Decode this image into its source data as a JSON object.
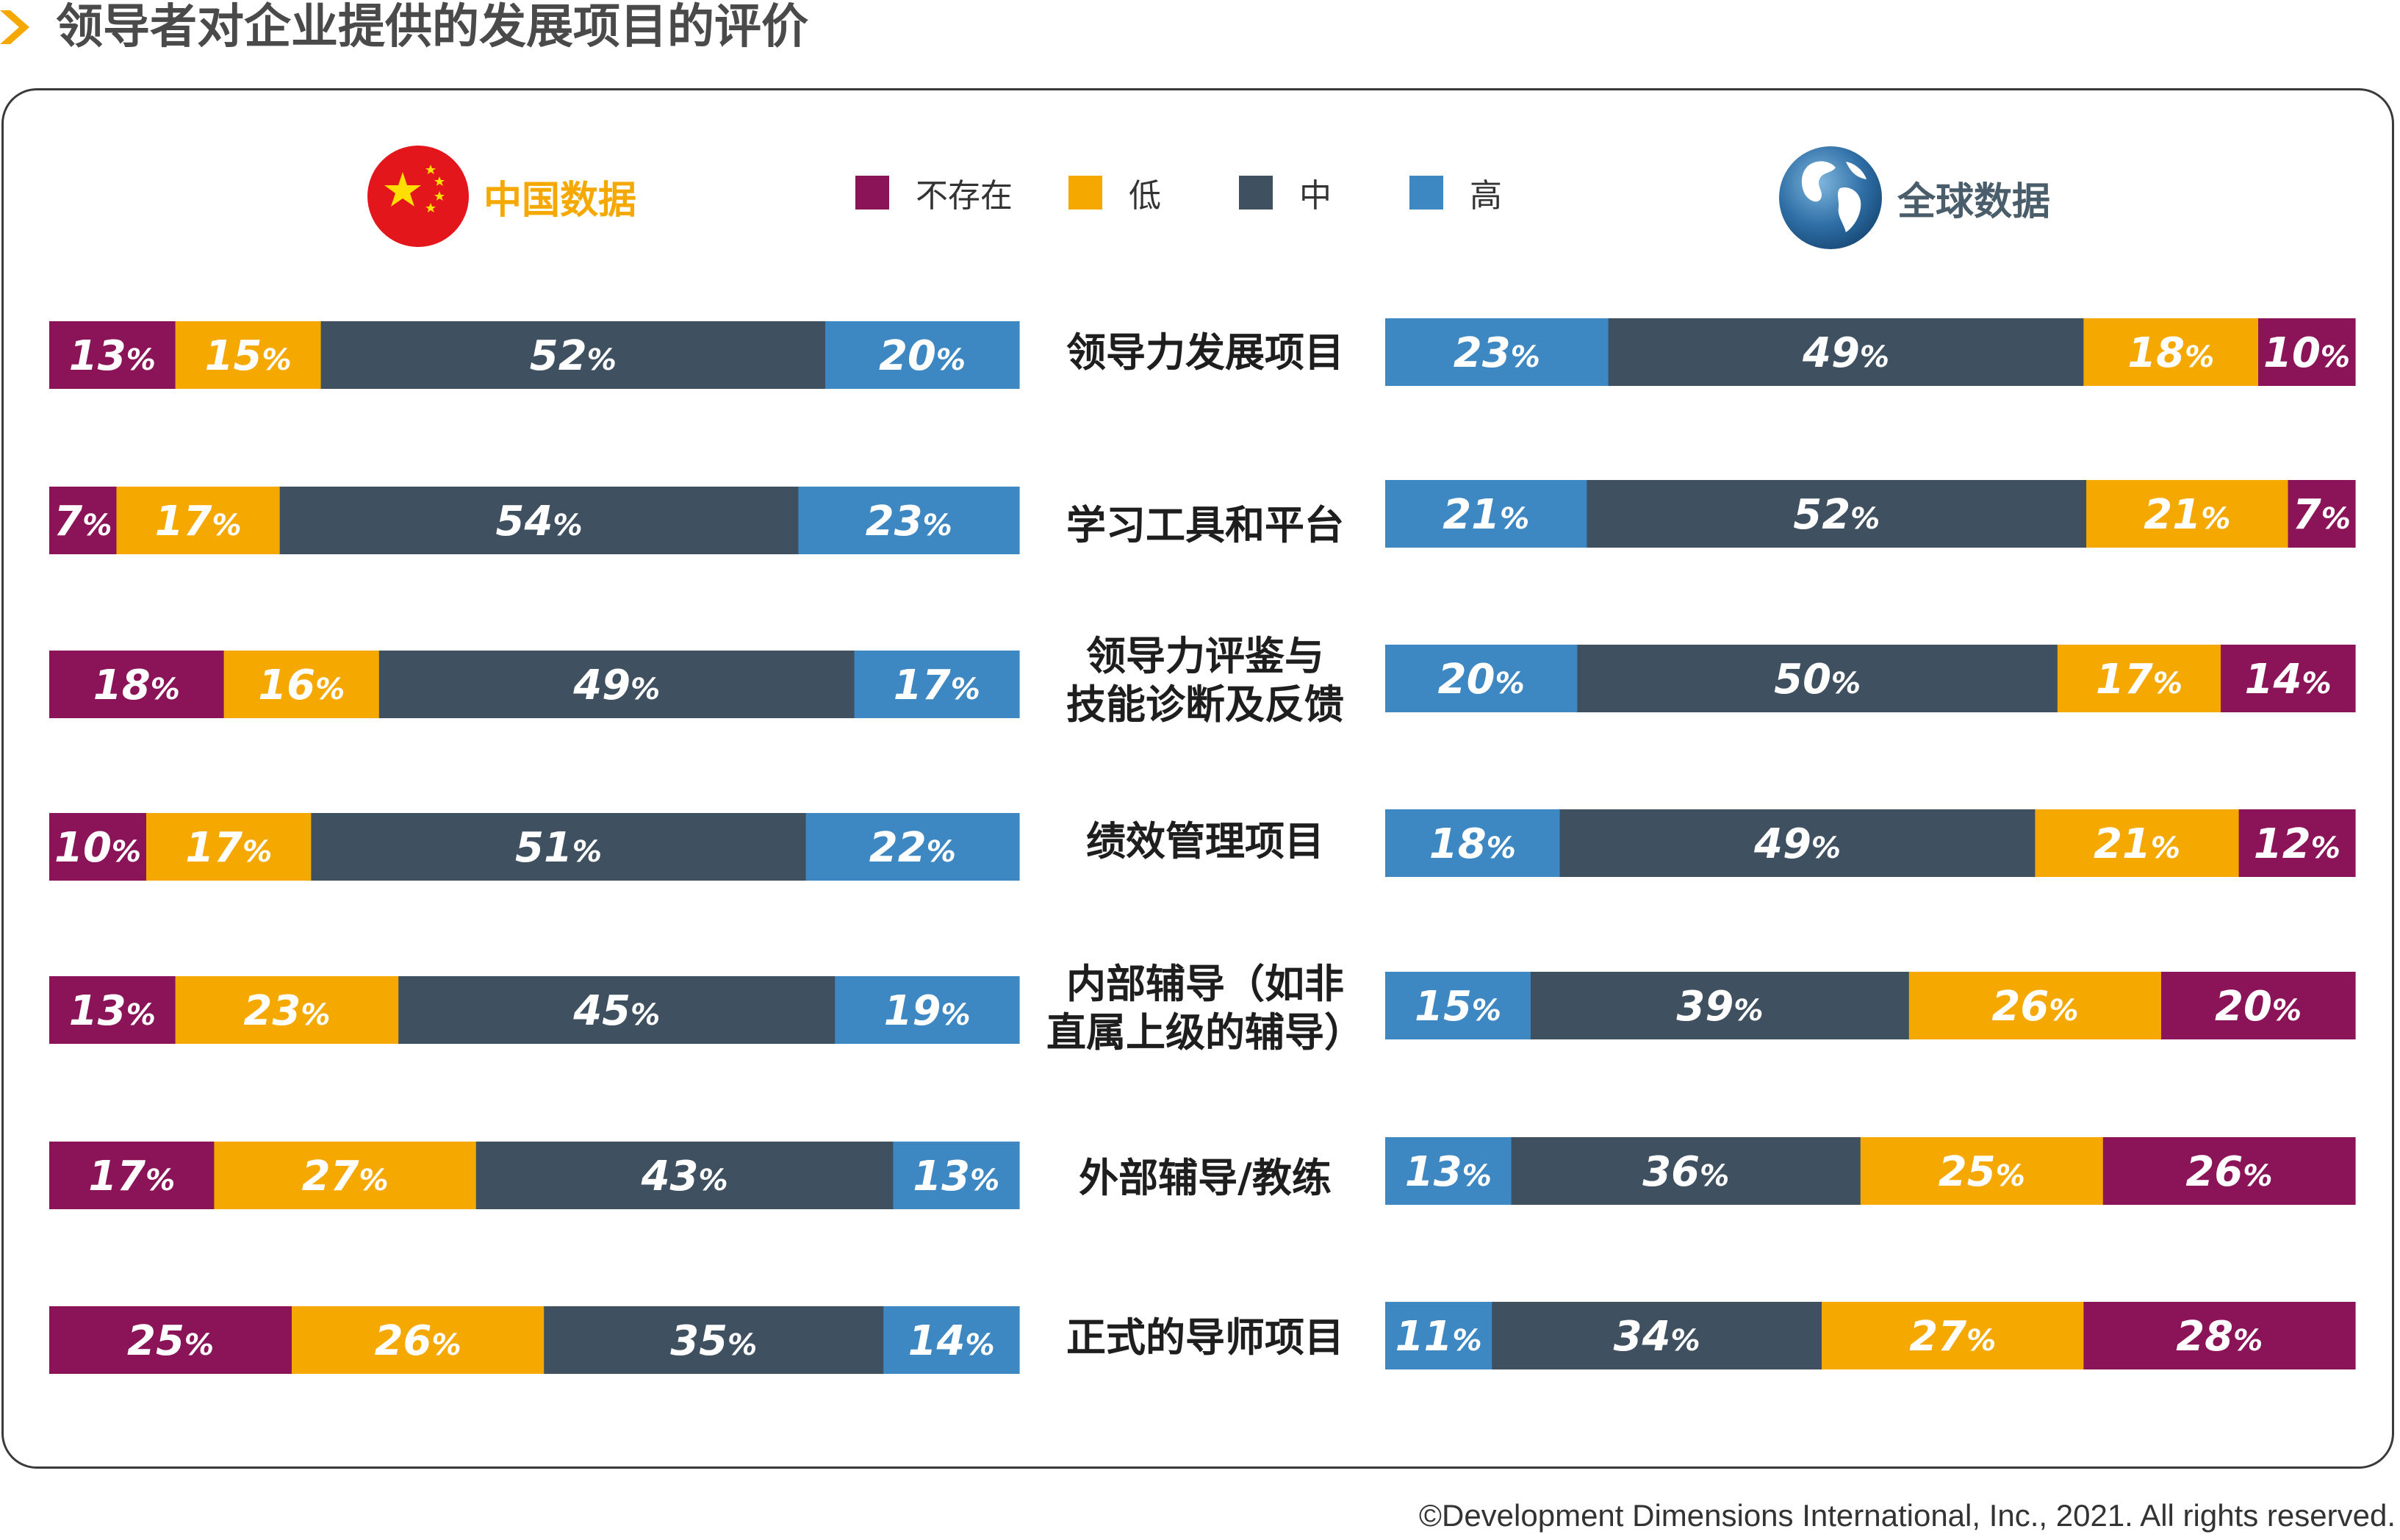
{
  "title": "领导者对企业提供的发展项目的评价",
  "regions": {
    "china": "中国数据",
    "global": "全球数据"
  },
  "copyright": "©Development Dimensions International, Inc., 2021. All rights reserved.",
  "colors": {
    "none": "#8b1459",
    "low": "#f5a800",
    "medium": "#3f5160",
    "high": "#3d87c2",
    "chevron": "#f5a800",
    "flag": "#e2161b",
    "star": "#ffde00",
    "globe": "#2f6fa6"
  },
  "chart_data": {
    "type": "bar",
    "orientation": "horizontal",
    "stacked": true,
    "legend": [
      "不存在",
      "低",
      "中",
      "高"
    ],
    "legend_position": "top",
    "categories": [
      "领导力发展项目",
      "学习工具和平台",
      "领导力评鉴与\n技能诊断及反馈",
      "绩效管理项目",
      "内部辅导（如非\n直属上级的辅导）",
      "外部辅导/教练",
      "正式的导师项目"
    ],
    "panels": [
      {
        "name": "中国数据",
        "segment_order": [
          "不存在",
          "低",
          "中",
          "高"
        ],
        "series": [
          {
            "name": "不存在",
            "values": [
              13,
              7,
              18,
              10,
              13,
              17,
              25
            ]
          },
          {
            "name": "低",
            "values": [
              15,
              17,
              16,
              17,
              23,
              27,
              26
            ]
          },
          {
            "name": "中",
            "values": [
              52,
              54,
              49,
              51,
              45,
              43,
              35
            ]
          },
          {
            "name": "高",
            "values": [
              20,
              23,
              17,
              22,
              19,
              13,
              14
            ]
          }
        ]
      },
      {
        "name": "全球数据",
        "segment_order": [
          "高",
          "中",
          "低",
          "不存在"
        ],
        "series": [
          {
            "name": "不存在",
            "values": [
              10,
              7,
              14,
              12,
              20,
              26,
              28
            ]
          },
          {
            "name": "低",
            "values": [
              18,
              21,
              17,
              21,
              26,
              25,
              27
            ]
          },
          {
            "name": "中",
            "values": [
              49,
              52,
              50,
              49,
              39,
              36,
              34
            ]
          },
          {
            "name": "高",
            "values": [
              23,
              21,
              20,
              18,
              15,
              13,
              11
            ]
          }
        ]
      }
    ],
    "value_suffix": "%"
  }
}
